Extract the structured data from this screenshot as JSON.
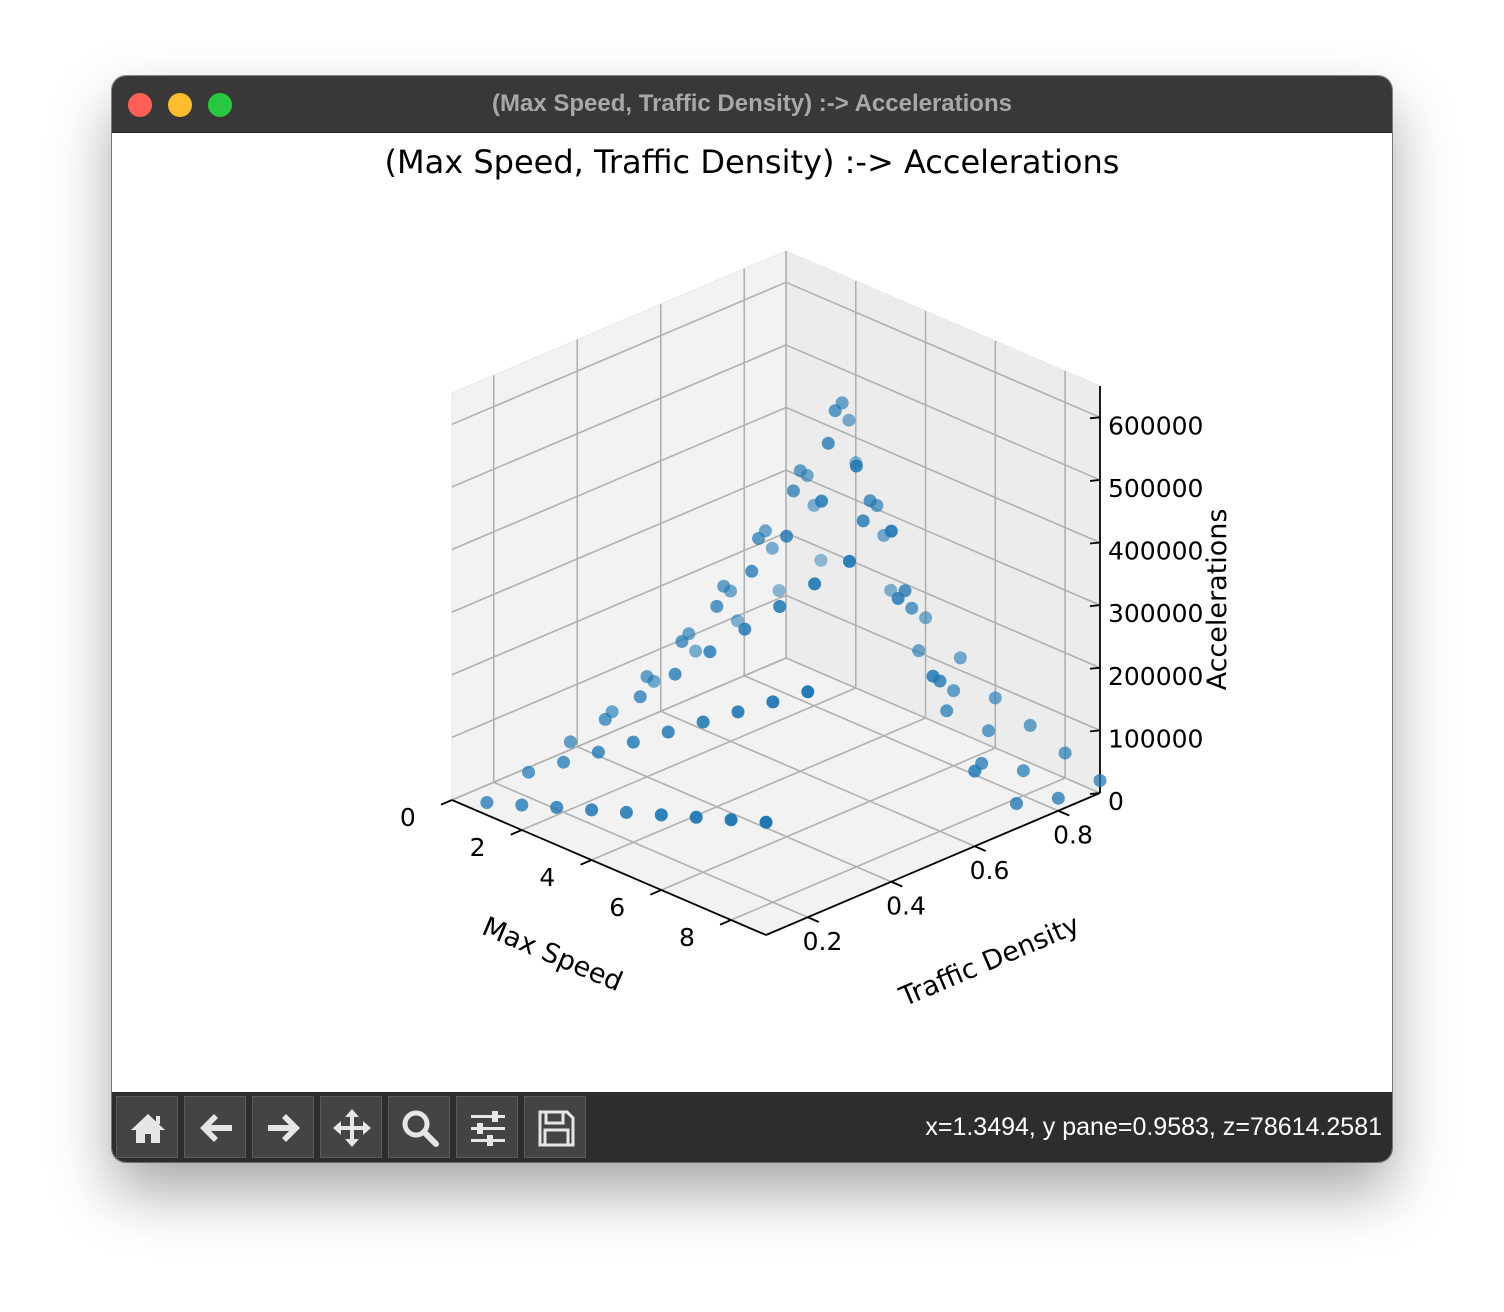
{
  "window": {
    "title": "(Max Speed, Traffic Density) :-> Accelerations"
  },
  "toolbar": {
    "buttons": [
      {
        "name": "home",
        "icon": "home-icon"
      },
      {
        "name": "back",
        "icon": "arrow-left-icon"
      },
      {
        "name": "forward",
        "icon": "arrow-right-icon"
      },
      {
        "name": "pan",
        "icon": "move-icon"
      },
      {
        "name": "zoom",
        "icon": "magnifier-icon"
      },
      {
        "name": "configure-subplots",
        "icon": "sliders-icon"
      },
      {
        "name": "save",
        "icon": "floppy-disk-icon"
      }
    ],
    "coords": "x=1.3494, y pane=0.9583, z=78614.2581"
  },
  "chart_data": {
    "type": "scatter",
    "projection": "3d",
    "title": "(Max Speed, Traffic Density) :-> Accelerations",
    "xlabel": "Max Speed",
    "ylabel": "Traffic Density",
    "zlabel": "Accelerations",
    "xlim": [
      0,
      9
    ],
    "ylim": [
      0.1,
      0.9
    ],
    "zlim": [
      0,
      650000
    ],
    "xticks": [
      "0",
      "2",
      "4",
      "6",
      "8"
    ],
    "yticks": [
      "0.2",
      "0.4",
      "0.6",
      "0.8"
    ],
    "zticks": [
      "0",
      "100000",
      "200000",
      "300000",
      "400000",
      "500000",
      "600000"
    ],
    "grid": true,
    "color": "#1f77b4",
    "x": [
      1,
      2,
      3,
      4,
      5,
      6,
      7,
      8,
      9
    ],
    "y": [
      0.1,
      0.2,
      0.3,
      0.4,
      0.5,
      0.6,
      0.7,
      0.8,
      0.9
    ],
    "z": [
      [
        20000,
        40000,
        60000,
        80000,
        100000,
        120000,
        140000,
        160000,
        180000
      ],
      [
        40000,
        80000,
        120000,
        160000,
        200000,
        240000,
        280000,
        320000,
        360000
      ],
      [
        60000,
        120000,
        180000,
        240000,
        300000,
        360000,
        420000,
        480000,
        540000
      ],
      [
        80000,
        160000,
        240000,
        320000,
        400000,
        480000,
        560000,
        640000,
        560000
      ],
      [
        100000,
        200000,
        300000,
        400000,
        500000,
        600000,
        500000,
        400000,
        300000
      ],
      [
        120000,
        240000,
        360000,
        480000,
        600000,
        480000,
        360000,
        240000,
        120000
      ],
      [
        140000,
        280000,
        420000,
        560000,
        420000,
        280000,
        140000,
        80000,
        40000
      ],
      [
        160000,
        320000,
        480000,
        320000,
        160000,
        120000,
        80000,
        40000,
        20000
      ],
      [
        180000,
        360000,
        180000,
        160000,
        120000,
        80000,
        60000,
        40000,
        20000
      ]
    ]
  }
}
